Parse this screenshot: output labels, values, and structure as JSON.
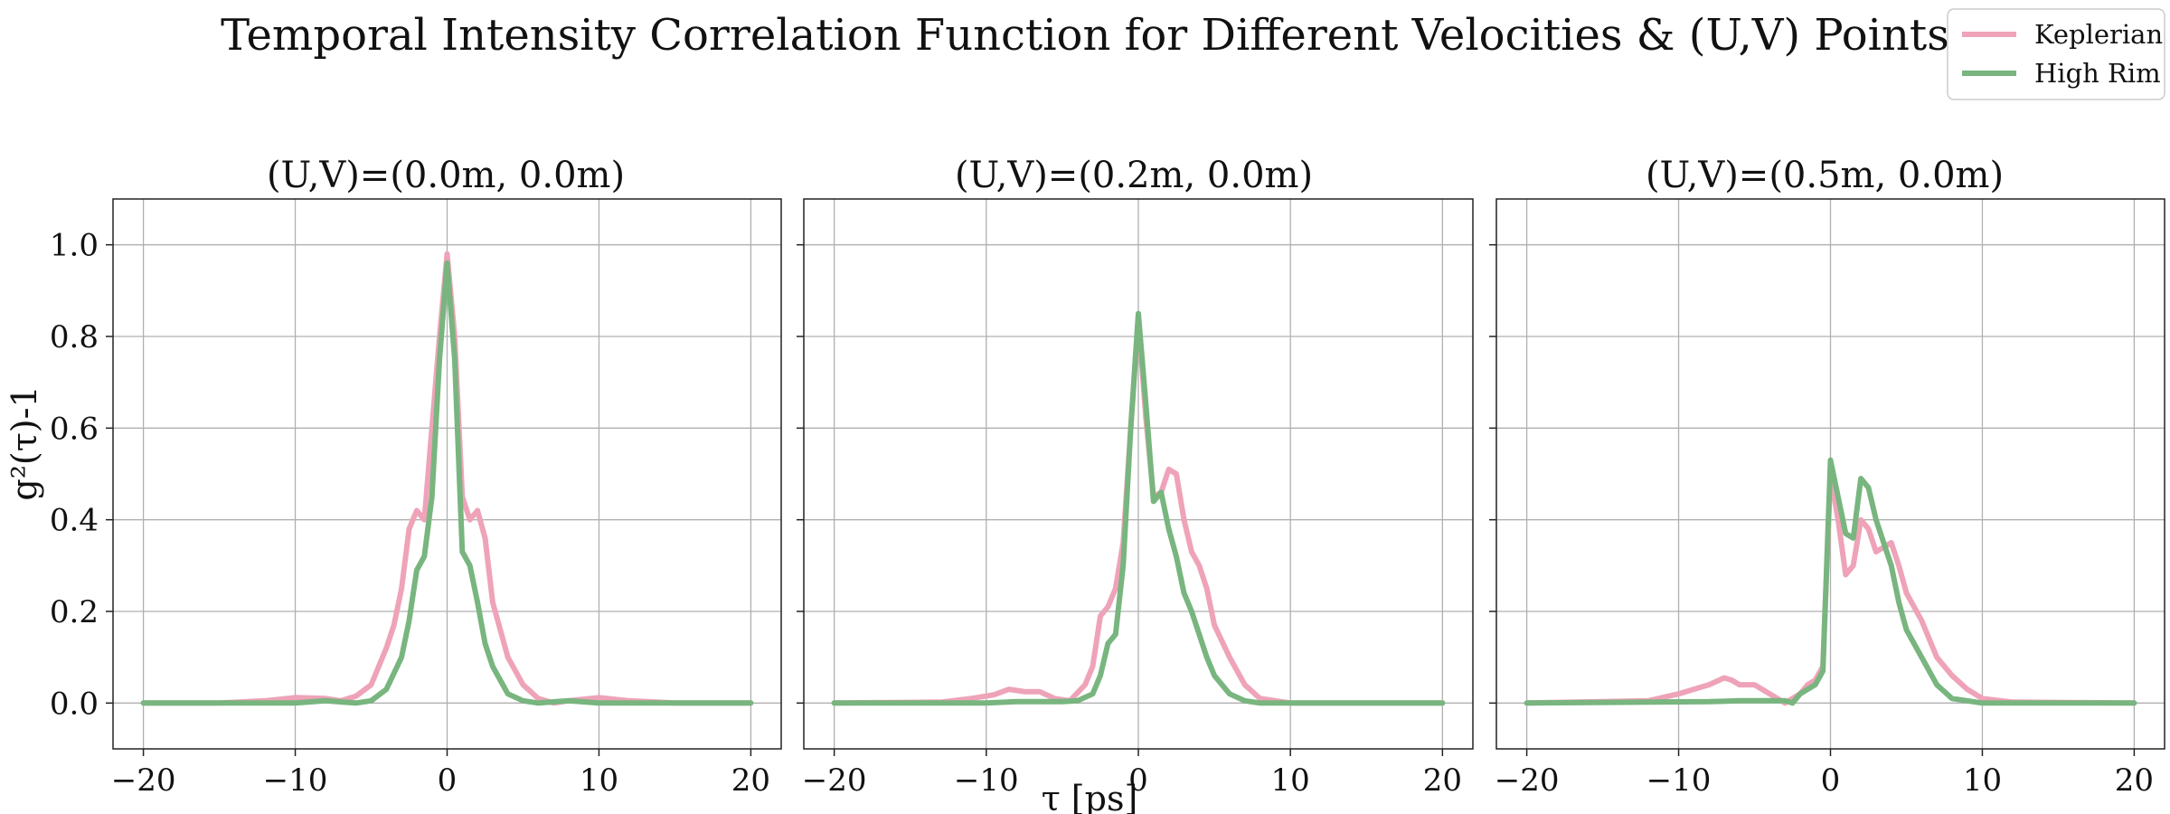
{
  "chart_data": {
    "type": "line",
    "title": "Temporal Intensity Correlation Function for Different Velocities & (U,V) Points",
    "xlabel": "τ [ps]",
    "ylabel": "g²(τ)-1",
    "xlim": [
      -22,
      22
    ],
    "ylim": [
      -0.1,
      1.1
    ],
    "xticks": [
      -20,
      -10,
      0,
      10,
      20
    ],
    "xtick_labels": [
      "−20",
      "−10",
      "0",
      "10",
      "20"
    ],
    "yticks": [
      0.0,
      0.2,
      0.4,
      0.6,
      0.8,
      1.0
    ],
    "ytick_labels": [
      "0.0",
      "0.2",
      "0.4",
      "0.6",
      "0.8",
      "1.0"
    ],
    "grid": true,
    "legend": {
      "position": "top-right",
      "entries": [
        {
          "name": "Keplerian",
          "color": "#eea3b8"
        },
        {
          "name": "High Rim",
          "color": "#78b57f"
        }
      ]
    },
    "panels": [
      {
        "title": "(U,V)=(0.0m, 0.0m)",
        "series": [
          {
            "name": "Keplerian",
            "color": "#eea3b8",
            "x": [
              -20,
              -15,
              -12,
              -10,
              -8,
              -7,
              -6,
              -5,
              -4,
              -3.5,
              -3,
              -2.5,
              -2,
              -1.5,
              -1,
              -0.5,
              0,
              0.5,
              1,
              1.5,
              2,
              2.5,
              3,
              3.5,
              4,
              5,
              6,
              7,
              8,
              10,
              12,
              15,
              20
            ],
            "y": [
              0,
              0,
              0.005,
              0.012,
              0.01,
              0.005,
              0.015,
              0.04,
              0.12,
              0.17,
              0.25,
              0.38,
              0.42,
              0.4,
              0.6,
              0.8,
              0.98,
              0.8,
              0.45,
              0.4,
              0.42,
              0.36,
              0.22,
              0.16,
              0.1,
              0.04,
              0.01,
              0.0,
              0.005,
              0.012,
              0.005,
              0,
              0
            ]
          },
          {
            "name": "High Rim",
            "color": "#78b57f",
            "x": [
              -20,
              -10,
              -8,
              -6,
              -5,
              -4,
              -3,
              -2.5,
              -2,
              -1.5,
              -1,
              -0.5,
              0,
              0.5,
              1,
              1.5,
              2,
              2.5,
              3,
              3.5,
              4,
              5,
              6,
              8,
              10,
              20
            ],
            "y": [
              0,
              0,
              0.005,
              0,
              0.005,
              0.03,
              0.1,
              0.18,
              0.29,
              0.32,
              0.45,
              0.75,
              0.96,
              0.75,
              0.33,
              0.3,
              0.22,
              0.13,
              0.08,
              0.05,
              0.02,
              0.005,
              0,
              0.005,
              0,
              0
            ]
          }
        ]
      },
      {
        "title": "(U,V)=(0.2m, 0.0m)",
        "series": [
          {
            "name": "Keplerian",
            "color": "#eea3b8",
            "x": [
              -20,
              -13,
              -11,
              -9.5,
              -8.5,
              -7.5,
              -6.5,
              -5.5,
              -4.5,
              -3.5,
              -3,
              -2.5,
              -2,
              -1.5,
              -1,
              -0.5,
              0,
              0.5,
              1,
              1.5,
              2,
              2.5,
              3,
              3.5,
              4,
              4.5,
              5,
              6,
              7,
              8,
              10,
              20
            ],
            "y": [
              0,
              0.002,
              0.01,
              0.018,
              0.03,
              0.025,
              0.025,
              0.01,
              0.005,
              0.04,
              0.08,
              0.19,
              0.21,
              0.25,
              0.35,
              0.6,
              0.84,
              0.62,
              0.45,
              0.46,
              0.51,
              0.5,
              0.4,
              0.33,
              0.3,
              0.25,
              0.17,
              0.1,
              0.04,
              0.01,
              0,
              0
            ]
          },
          {
            "name": "High Rim",
            "color": "#78b57f",
            "x": [
              -20,
              -10,
              -8,
              -6,
              -5,
              -4,
              -3,
              -2.5,
              -2,
              -1.5,
              -1,
              -0.5,
              0,
              0.5,
              1,
              1.5,
              2,
              2.5,
              3,
              3.5,
              4,
              4.5,
              5,
              6,
              7,
              8,
              10,
              20
            ],
            "y": [
              0,
              0,
              0.003,
              0.003,
              0.003,
              0.005,
              0.02,
              0.06,
              0.13,
              0.15,
              0.3,
              0.6,
              0.85,
              0.65,
              0.44,
              0.46,
              0.38,
              0.32,
              0.24,
              0.2,
              0.15,
              0.1,
              0.06,
              0.02,
              0.005,
              0,
              0,
              0
            ]
          }
        ]
      },
      {
        "title": "(U,V)=(0.5m, 0.0m)",
        "series": [
          {
            "name": "Keplerian",
            "color": "#eea3b8",
            "x": [
              -20,
              -12,
              -10,
              -9,
              -8,
              -7,
              -6.5,
              -6,
              -5,
              -4,
              -3,
              -2,
              -1.5,
              -1,
              -0.5,
              0,
              0.5,
              1,
              1.5,
              2,
              2.5,
              3,
              3.5,
              4,
              4.5,
              5,
              6,
              7,
              8,
              9,
              10,
              12,
              20
            ],
            "y": [
              0,
              0.005,
              0.02,
              0.03,
              0.04,
              0.055,
              0.05,
              0.04,
              0.04,
              0.02,
              0.0,
              0.02,
              0.04,
              0.05,
              0.08,
              0.5,
              0.4,
              0.28,
              0.3,
              0.4,
              0.38,
              0.33,
              0.34,
              0.35,
              0.3,
              0.24,
              0.18,
              0.1,
              0.06,
              0.03,
              0.01,
              0.002,
              0
            ]
          },
          {
            "name": "High Rim",
            "color": "#78b57f",
            "x": [
              -20,
              -8,
              -6,
              -5,
              -4,
              -3,
              -2.5,
              -2,
              -1.5,
              -1,
              -0.5,
              0,
              0.5,
              1,
              1.5,
              2,
              2.5,
              3,
              3.5,
              4,
              4.5,
              5,
              6,
              7,
              8,
              10,
              20
            ],
            "y": [
              0,
              0.003,
              0.005,
              0.005,
              0.005,
              0.005,
              0.0,
              0.02,
              0.03,
              0.04,
              0.07,
              0.53,
              0.45,
              0.37,
              0.36,
              0.49,
              0.47,
              0.4,
              0.35,
              0.3,
              0.22,
              0.16,
              0.1,
              0.04,
              0.01,
              0,
              0
            ]
          }
        ]
      }
    ]
  }
}
